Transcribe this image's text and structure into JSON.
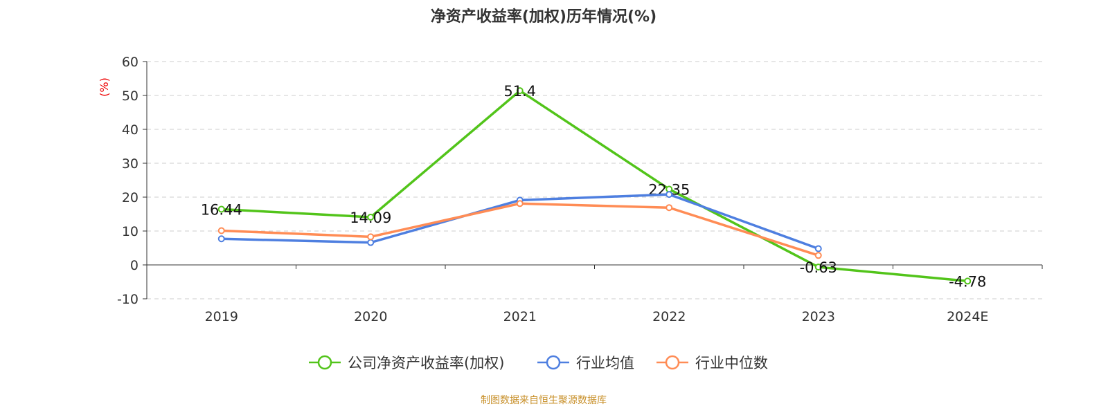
{
  "chart_data": {
    "type": "line",
    "title": "净资产收益率(加权)历年情况(%)",
    "ylabel": "(%)",
    "categories": [
      "2019",
      "2020",
      "2021",
      "2022",
      "2023",
      "2024E"
    ],
    "ylim": [
      -10,
      60
    ],
    "yticks": [
      -10,
      0,
      10,
      20,
      30,
      40,
      50,
      60
    ],
    "grid": true,
    "legend_position": "bottom",
    "series": [
      {
        "name": "公司净资产收益率(加权)",
        "color": "#52c41a",
        "values": [
          16.44,
          14.09,
          51.4,
          22.35,
          -0.63,
          -4.78
        ],
        "labels": [
          "16.44",
          "14.09",
          "51.4",
          "22.35",
          "-0.63",
          "-4.78"
        ]
      },
      {
        "name": "行业均值",
        "color": "#4e7fe0",
        "values": [
          7.7,
          6.6,
          19.1,
          20.8,
          4.8,
          null
        ]
      },
      {
        "name": "行业中位数",
        "color": "#ff8c55",
        "values": [
          10.1,
          8.3,
          18.1,
          16.9,
          2.8,
          null
        ]
      }
    ]
  },
  "source": "制图数据来自恒生聚源数据库"
}
